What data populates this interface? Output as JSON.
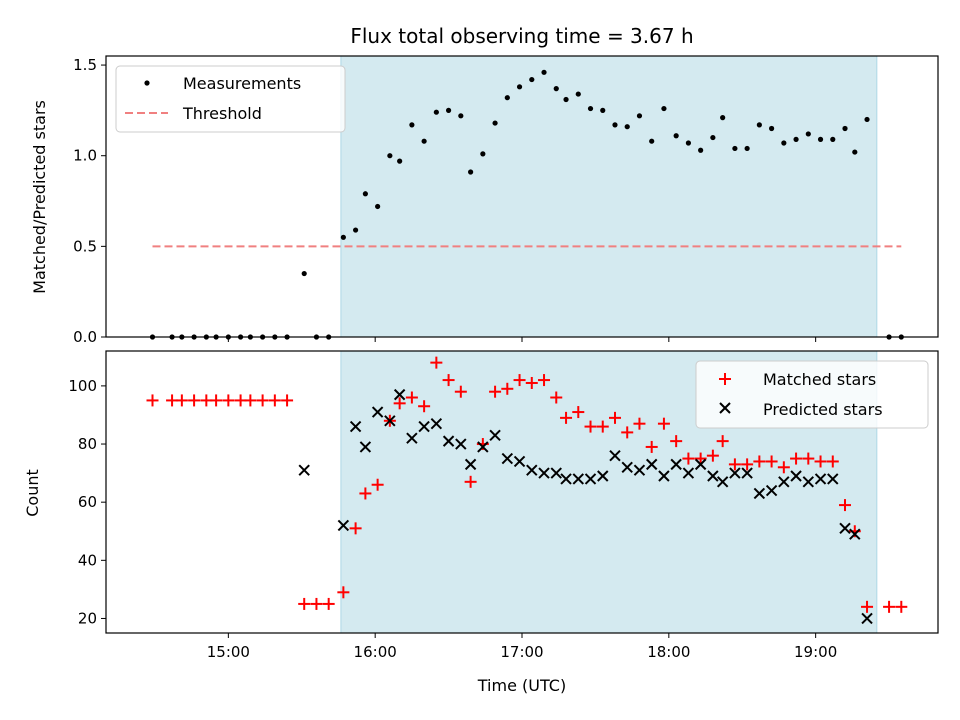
{
  "chart_data": [
    {
      "type": "scatter",
      "title": "Flux total observing time = 3.67 h",
      "ylabel": "Matched/Predicted stars",
      "ylim": [
        0,
        1.55
      ],
      "yticks": [
        "0.0",
        "0.5",
        "1.0",
        "1.5"
      ],
      "ytick_values": [
        0,
        0.5,
        1.0,
        1.5
      ],
      "shaded_span": [
        "15:46",
        "19:25"
      ],
      "span_color": "#d4eaf0",
      "legend_position": "top-left",
      "threshold": {
        "name": "Threshold",
        "y": 0.5,
        "x_range": [
          "14:29",
          "19:35"
        ],
        "color": "#f08080"
      },
      "series": [
        {
          "name": "Measurements",
          "color": "#000000",
          "points": [
            [
              "14:29",
              0.0
            ],
            [
              "14:37",
              0.0
            ],
            [
              "14:41",
              0.0
            ],
            [
              "14:46",
              0.0
            ],
            [
              "14:51",
              0.0
            ],
            [
              "14:55",
              0.0
            ],
            [
              "15:00",
              0.0
            ],
            [
              "15:05",
              0.0
            ],
            [
              "15:09",
              0.0
            ],
            [
              "15:14",
              0.0
            ],
            [
              "15:19",
              0.0
            ],
            [
              "15:24",
              0.0
            ],
            [
              "15:31",
              0.35
            ],
            [
              "15:36",
              0.0
            ],
            [
              "15:41",
              0.0
            ],
            [
              "15:47",
              0.55
            ],
            [
              "15:52",
              0.59
            ],
            [
              "15:56",
              0.79
            ],
            [
              "16:01",
              0.72
            ],
            [
              "16:06",
              1.0
            ],
            [
              "16:10",
              0.97
            ],
            [
              "16:15",
              1.17
            ],
            [
              "16:20",
              1.08
            ],
            [
              "16:25",
              1.24
            ],
            [
              "16:30",
              1.25
            ],
            [
              "16:35",
              1.22
            ],
            [
              "16:39",
              0.91
            ],
            [
              "16:44",
              1.01
            ],
            [
              "16:49",
              1.18
            ],
            [
              "16:54",
              1.32
            ],
            [
              "16:59",
              1.38
            ],
            [
              "17:04",
              1.42
            ],
            [
              "17:09",
              1.46
            ],
            [
              "17:14",
              1.37
            ],
            [
              "17:18",
              1.31
            ],
            [
              "17:23",
              1.34
            ],
            [
              "17:28",
              1.26
            ],
            [
              "17:33",
              1.25
            ],
            [
              "17:38",
              1.17
            ],
            [
              "17:43",
              1.16
            ],
            [
              "17:48",
              1.22
            ],
            [
              "17:53",
              1.08
            ],
            [
              "17:58",
              1.26
            ],
            [
              "18:03",
              1.11
            ],
            [
              "18:08",
              1.07
            ],
            [
              "18:13",
              1.03
            ],
            [
              "18:18",
              1.1
            ],
            [
              "18:22",
              1.21
            ],
            [
              "18:27",
              1.04
            ],
            [
              "18:32",
              1.04
            ],
            [
              "18:37",
              1.17
            ],
            [
              "18:42",
              1.15
            ],
            [
              "18:47",
              1.07
            ],
            [
              "18:52",
              1.09
            ],
            [
              "18:57",
              1.12
            ],
            [
              "19:02",
              1.09
            ],
            [
              "19:07",
              1.09
            ],
            [
              "19:12",
              1.15
            ],
            [
              "19:16",
              1.02
            ],
            [
              "19:21",
              1.2
            ],
            [
              "19:30",
              0.0
            ],
            [
              "19:35",
              0.0
            ]
          ]
        }
      ]
    },
    {
      "type": "scatter",
      "xlabel": "Time (UTC)",
      "ylabel": "Count",
      "ylim": [
        15,
        112
      ],
      "yticks": [
        "20",
        "40",
        "60",
        "80",
        "100"
      ],
      "ytick_values": [
        20,
        40,
        60,
        80,
        100
      ],
      "xticks": [
        "15:00",
        "16:00",
        "17:00",
        "18:00",
        "19:00"
      ],
      "xlim": [
        "14:10",
        "19:50"
      ],
      "shaded_span": [
        "15:46",
        "19:25"
      ],
      "legend_position": "top-right",
      "series": [
        {
          "name": "Matched stars",
          "marker": "plus",
          "color": "#ff0000",
          "points": [
            [
              "14:29",
              95
            ],
            [
              "14:37",
              95
            ],
            [
              "14:41",
              95
            ],
            [
              "14:46",
              95
            ],
            [
              "14:51",
              95
            ],
            [
              "14:55",
              95
            ],
            [
              "15:00",
              95
            ],
            [
              "15:05",
              95
            ],
            [
              "15:09",
              95
            ],
            [
              "15:14",
              95
            ],
            [
              "15:19",
              95
            ],
            [
              "15:24",
              95
            ],
            [
              "15:31",
              25
            ],
            [
              "15:36",
              25
            ],
            [
              "15:41",
              25
            ],
            [
              "15:47",
              29
            ],
            [
              "15:52",
              51
            ],
            [
              "15:56",
              63
            ],
            [
              "16:01",
              66
            ],
            [
              "16:06",
              88
            ],
            [
              "16:10",
              94
            ],
            [
              "16:15",
              96
            ],
            [
              "16:20",
              93
            ],
            [
              "16:25",
              108
            ],
            [
              "16:30",
              102
            ],
            [
              "16:35",
              98
            ],
            [
              "16:39",
              67
            ],
            [
              "16:44",
              80
            ],
            [
              "16:49",
              98
            ],
            [
              "16:54",
              99
            ],
            [
              "16:59",
              102
            ],
            [
              "17:04",
              101
            ],
            [
              "17:09",
              102
            ],
            [
              "17:14",
              96
            ],
            [
              "17:18",
              89
            ],
            [
              "17:23",
              91
            ],
            [
              "17:28",
              86
            ],
            [
              "17:33",
              86
            ],
            [
              "17:38",
              89
            ],
            [
              "17:43",
              84
            ],
            [
              "17:48",
              87
            ],
            [
              "17:53",
              79
            ],
            [
              "17:58",
              87
            ],
            [
              "18:03",
              81
            ],
            [
              "18:08",
              75
            ],
            [
              "18:13",
              75
            ],
            [
              "18:18",
              76
            ],
            [
              "18:22",
              81
            ],
            [
              "18:27",
              73
            ],
            [
              "18:32",
              73
            ],
            [
              "18:37",
              74
            ],
            [
              "18:42",
              74
            ],
            [
              "18:47",
              72
            ],
            [
              "18:52",
              75
            ],
            [
              "18:57",
              75
            ],
            [
              "19:02",
              74
            ],
            [
              "19:07",
              74
            ],
            [
              "19:12",
              59
            ],
            [
              "19:16",
              50
            ],
            [
              "19:21",
              24
            ],
            [
              "19:30",
              24
            ],
            [
              "19:35",
              24
            ]
          ]
        },
        {
          "name": "Predicted stars",
          "marker": "x",
          "color": "#000000",
          "points": [
            [
              "15:31",
              71
            ],
            [
              "15:47",
              52
            ],
            [
              "15:52",
              86
            ],
            [
              "15:56",
              79
            ],
            [
              "16:01",
              91
            ],
            [
              "16:06",
              88
            ],
            [
              "16:10",
              97
            ],
            [
              "16:15",
              82
            ],
            [
              "16:20",
              86
            ],
            [
              "16:25",
              87
            ],
            [
              "16:30",
              81
            ],
            [
              "16:35",
              80
            ],
            [
              "16:39",
              73
            ],
            [
              "16:44",
              79
            ],
            [
              "16:49",
              83
            ],
            [
              "16:54",
              75
            ],
            [
              "16:59",
              74
            ],
            [
              "17:04",
              71
            ],
            [
              "17:09",
              70
            ],
            [
              "17:14",
              70
            ],
            [
              "17:18",
              68
            ],
            [
              "17:23",
              68
            ],
            [
              "17:28",
              68
            ],
            [
              "17:33",
              69
            ],
            [
              "17:38",
              76
            ],
            [
              "17:43",
              72
            ],
            [
              "17:48",
              71
            ],
            [
              "17:53",
              73
            ],
            [
              "17:58",
              69
            ],
            [
              "18:03",
              73
            ],
            [
              "18:08",
              70
            ],
            [
              "18:13",
              73
            ],
            [
              "18:18",
              69
            ],
            [
              "18:22",
              67
            ],
            [
              "18:27",
              70
            ],
            [
              "18:32",
              70
            ],
            [
              "18:37",
              63
            ],
            [
              "18:42",
              64
            ],
            [
              "18:47",
              67
            ],
            [
              "18:52",
              69
            ],
            [
              "18:57",
              67
            ],
            [
              "19:02",
              68
            ],
            [
              "19:07",
              68
            ],
            [
              "19:12",
              51
            ],
            [
              "19:16",
              49
            ],
            [
              "19:21",
              20
            ]
          ]
        }
      ]
    }
  ]
}
